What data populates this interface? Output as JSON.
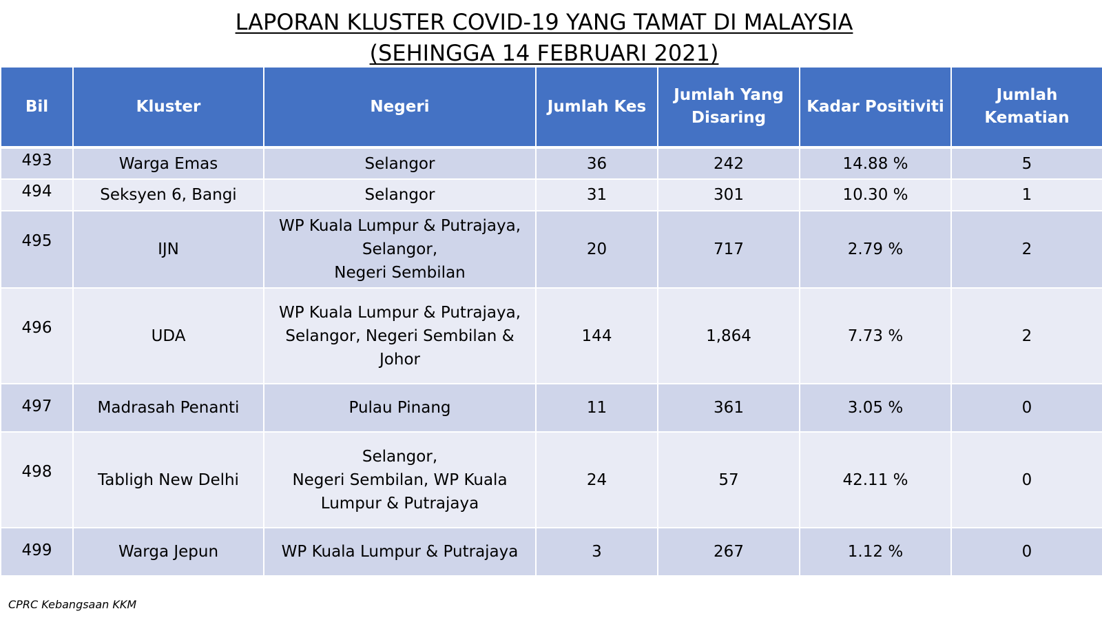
{
  "title": {
    "line1": "LAPORAN KLUSTER COVID-19 YANG TAMAT DI MALAYSIA",
    "line2": "(SEHINGGA 14 FEBRUARI 2021)"
  },
  "table": {
    "headers": {
      "bil": "Bil",
      "kluster": "Kluster",
      "negeri": "Negeri",
      "jumlah_kes": "Jumlah Kes",
      "jumlah_disaring": "Jumlah Yang\nDisaring",
      "kadar_positiviti": "Kadar Positiviti",
      "jumlah_kematian": "Jumlah\nKematian"
    },
    "rows": [
      {
        "bil": "493",
        "kluster": "Warga Emas",
        "negeri": "Selangor",
        "kes": "36",
        "disaring": "242",
        "positiviti": "14.88 %",
        "kematian": "5"
      },
      {
        "bil": "494",
        "kluster": "Seksyen 6, Bangi",
        "negeri": "Selangor",
        "kes": "31",
        "disaring": "301",
        "positiviti": "10.30 %",
        "kematian": "1"
      },
      {
        "bil": "495",
        "kluster": "IJN",
        "negeri": "WP Kuala Lumpur & Putrajaya,\nSelangor,\nNegeri Sembilan",
        "kes": "20",
        "disaring": "717",
        "positiviti": "2.79 %",
        "kematian": "2"
      },
      {
        "bil": "496",
        "kluster": "UDA",
        "negeri": "WP Kuala Lumpur & Putrajaya,\nSelangor, Negeri Sembilan &\nJohor",
        "kes": "144",
        "disaring": "1,864",
        "positiviti": "7.73 %",
        "kematian": "2"
      },
      {
        "bil": "497",
        "kluster": "Madrasah Penanti",
        "negeri": "Pulau Pinang",
        "kes": "11",
        "disaring": "361",
        "positiviti": "3.05 %",
        "kematian": "0"
      },
      {
        "bil": "498",
        "kluster": "Tabligh New Delhi",
        "negeri": "Selangor,\nNegeri Sembilan, WP Kuala\nLumpur & Putrajaya",
        "kes": "24",
        "disaring": "57",
        "positiviti": "42.11 %",
        "kematian": "0"
      },
      {
        "bil": "499",
        "kluster": "Warga Jepun",
        "negeri": "WP Kuala Lumpur & Putrajaya",
        "kes": "3",
        "disaring": "267",
        "positiviti": "1.12 %",
        "kematian": "0"
      }
    ]
  },
  "footer": "CPRC Kebangsaan KKM",
  "colors": {
    "header_bg": "#4472c4",
    "row_odd": "#cfd5ea",
    "row_even": "#e9ebf5"
  }
}
